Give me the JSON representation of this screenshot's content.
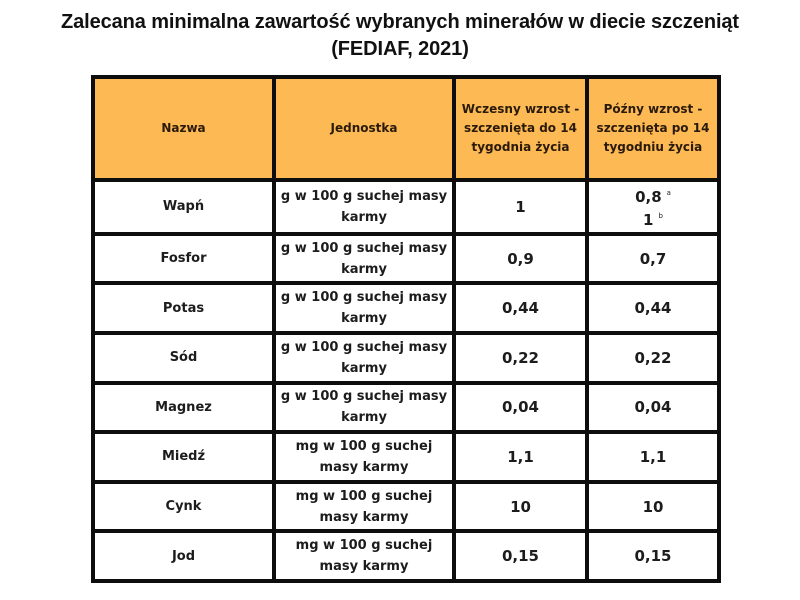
{
  "title": {
    "line1": "Zalecana minimalna zawartość wybranych minerałów w diecie szczeniąt",
    "line2": "(FEDIAF, 2021)"
  },
  "colors": {
    "header_bg": "#fdb954",
    "border": "#0d0d0d",
    "text": "#1c1c1c"
  },
  "table": {
    "headers": {
      "name": "Nazwa",
      "unit": "Jednostka",
      "early": "Wczesny wzrost - szczenięta do 14 tygodnia życia",
      "late": "Późny wzrost - szczenięta po 14 tygodniu życia"
    },
    "rows": [
      {
        "name": "Wapń",
        "unit": "g w 100 g suchej masy karmy",
        "early": "1",
        "late": "0,8",
        "late_sup": "a",
        "late2": "1",
        "late2_sup": "b"
      },
      {
        "name": "Fosfor",
        "unit": "g w 100 g suchej masy karmy",
        "early": "0,9",
        "late": "0,7"
      },
      {
        "name": "Potas",
        "unit": "g w 100 g suchej masy karmy",
        "early": "0,44",
        "late": "0,44"
      },
      {
        "name": "Sód",
        "unit": "g w 100 g suchej masy karmy",
        "early": "0,22",
        "late": "0,22"
      },
      {
        "name": "Magnez",
        "unit": "g w 100 g suchej masy karmy",
        "early": "0,04",
        "late": "0,04"
      },
      {
        "name": "Miedź",
        "unit": "mg w 100 g suchej masy karmy",
        "early": "1,1",
        "late": "1,1"
      },
      {
        "name": "Cynk",
        "unit": "mg w 100 g suchej masy karmy",
        "early": "10",
        "late": "10"
      },
      {
        "name": "Jod",
        "unit": "mg w 100 g suchej masy karmy",
        "early": "0,15",
        "late": "0,15"
      }
    ]
  }
}
